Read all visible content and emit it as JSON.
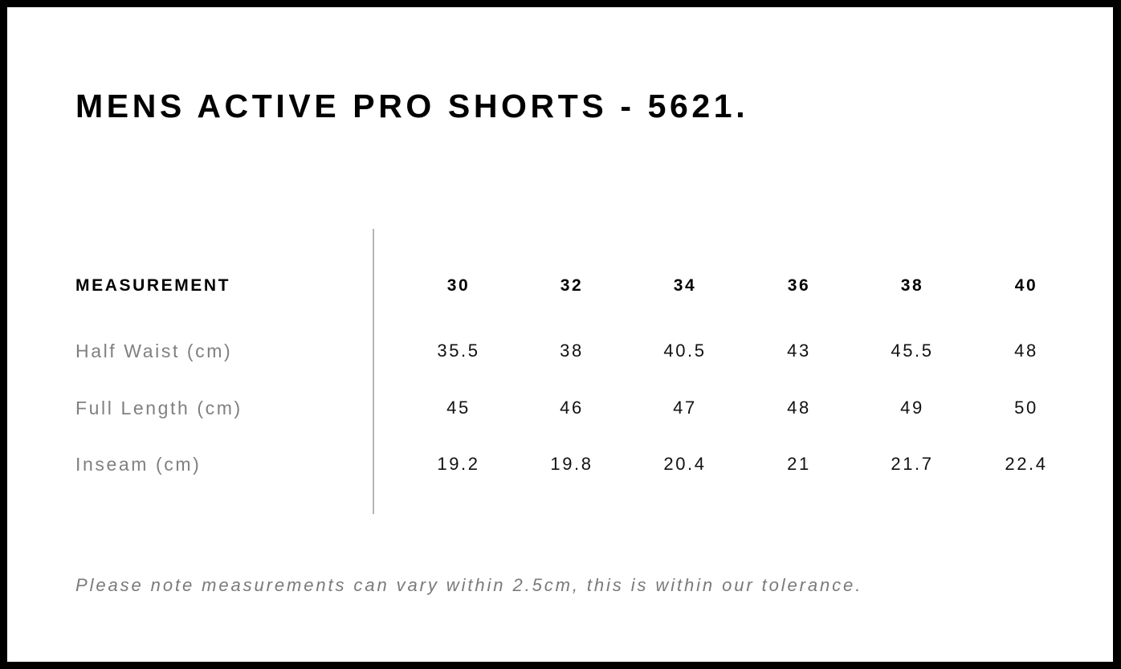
{
  "title": "MENS ACTIVE PRO SHORTS - 5621.",
  "table": {
    "header_label": "MEASUREMENT",
    "sizes": [
      "30",
      "32",
      "34",
      "36",
      "38",
      "40"
    ],
    "rows": [
      {
        "label": "Half Waist (cm)",
        "values": [
          "35.5",
          "38",
          "40.5",
          "43",
          "45.5",
          "48"
        ]
      },
      {
        "label": "Full Length (cm)",
        "values": [
          "45",
          "46",
          "47",
          "48",
          "49",
          "50"
        ]
      },
      {
        "label": "Inseam (cm)",
        "values": [
          "19.2",
          "19.8",
          "20.4",
          "21",
          "21.7",
          "22.4"
        ]
      }
    ]
  },
  "note": "Please note measurements can vary within 2.5cm, this is within our tolerance."
}
